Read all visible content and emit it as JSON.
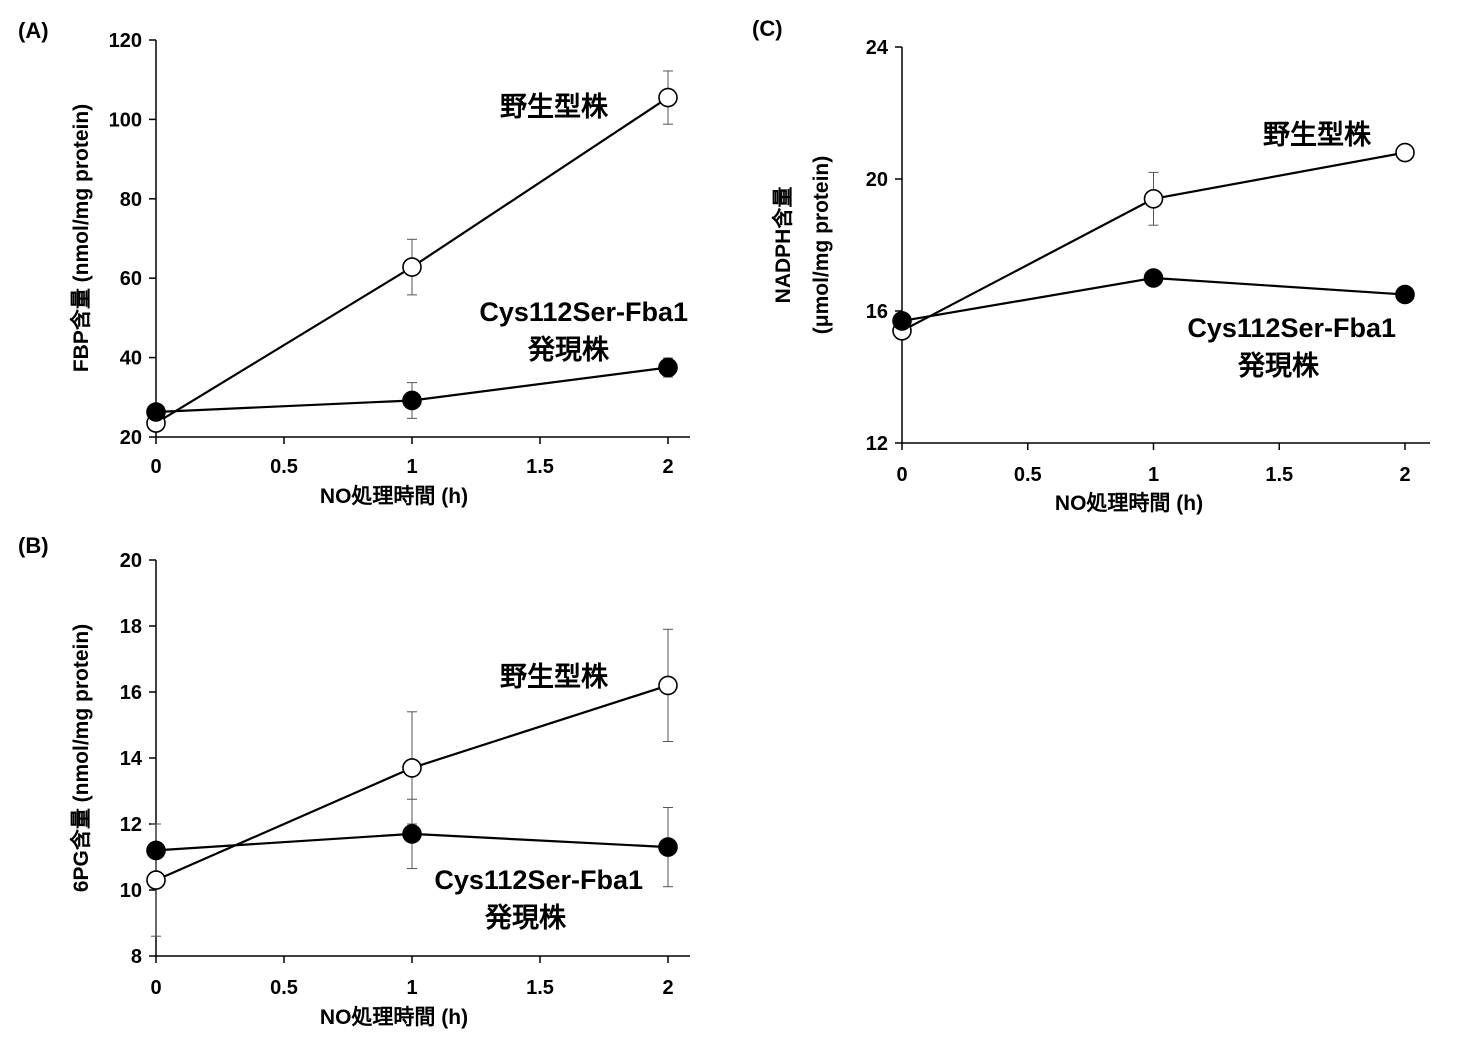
{
  "chart_data": [
    {
      "panel": "(A)",
      "type": "line",
      "title": "",
      "xlabel": "NO処理時間 (h)",
      "ylabel": "FBP含量 (nmol/mg protein)",
      "xlim": [
        0,
        2
      ],
      "ylim": [
        20,
        120
      ],
      "xticks": [
        0,
        0.5,
        1,
        1.5,
        2
      ],
      "xtick_labels": [
        "0",
        "0.5",
        "1",
        "1.5",
        "2"
      ],
      "yticks": [
        20,
        40,
        60,
        80,
        100,
        120
      ],
      "ytick_labels": [
        "20",
        "40",
        "60",
        "80",
        "100",
        "120"
      ],
      "grid": false,
      "legend": "none",
      "series": [
        {
          "name": "野生型株",
          "marker": "open-circle",
          "x": [
            0,
            1,
            2
          ],
          "y": [
            23.5,
            62.8,
            105.5
          ],
          "err": [
            0,
            7.0,
            6.7
          ]
        },
        {
          "name": "Cys112Ser-Fba1 発現株",
          "name_lines": [
            "Cys112Ser-Fba1",
            "発現株"
          ],
          "marker": "filled-circle",
          "x": [
            0,
            1,
            2
          ],
          "y": [
            26.3,
            29.2,
            37.5
          ],
          "err": [
            0,
            4.5,
            2.4
          ]
        }
      ]
    },
    {
      "panel": "(B)",
      "type": "line",
      "title": "",
      "xlabel": "NO処理時間 (h)",
      "ylabel": "6PG含量 (nmol/mg protein)",
      "xlim": [
        0,
        2
      ],
      "ylim": [
        8,
        20
      ],
      "xticks": [
        0,
        0.5,
        1,
        1.5,
        2
      ],
      "xtick_labels": [
        "0",
        "0.5",
        "1",
        "1.5",
        "2"
      ],
      "yticks": [
        8,
        10,
        12,
        14,
        16,
        18,
        20
      ],
      "ytick_labels": [
        "8",
        "10",
        "12",
        "14",
        "16",
        "18",
        "20"
      ],
      "grid": false,
      "legend": "none",
      "series": [
        {
          "name": "野生型株",
          "marker": "open-circle",
          "x": [
            0,
            1,
            2
          ],
          "y": [
            10.3,
            13.7,
            16.2
          ],
          "err": [
            1.7,
            1.7,
            1.7
          ]
        },
        {
          "name": "Cys112Ser-Fba1 発現株",
          "name_lines": [
            "Cys112Ser-Fba1",
            "発現株"
          ],
          "marker": "filled-circle",
          "x": [
            0,
            1,
            2
          ],
          "y": [
            11.2,
            11.7,
            11.3
          ],
          "err": [
            0,
            1.05,
            1.2
          ]
        }
      ]
    },
    {
      "panel": "(C)",
      "type": "line",
      "title": "",
      "xlabel": "NO処理時間 (h)",
      "ylabel": "NADPH含量",
      "ylabel2": "(μmol/mg protein)",
      "xlim": [
        0,
        2
      ],
      "ylim": [
        12,
        24
      ],
      "xticks": [
        0,
        0.5,
        1,
        1.5,
        2
      ],
      "xtick_labels": [
        "0",
        "0.5",
        "1",
        "1.5",
        "2"
      ],
      "yticks": [
        12,
        16,
        20,
        24
      ],
      "ytick_labels": [
        "12",
        "16",
        "20",
        "24"
      ],
      "grid": false,
      "legend": "none",
      "series": [
        {
          "name": "野生型株",
          "marker": "open-circle",
          "x": [
            0,
            1,
            2
          ],
          "y": [
            15.4,
            19.4,
            20.8
          ],
          "err": [
            0,
            0.8,
            0
          ]
        },
        {
          "name": "Cys112Ser-Fba1 発現株",
          "name_lines": [
            "Cys112Ser-Fba1",
            "発現株"
          ],
          "marker": "filled-circle",
          "x": [
            0,
            1,
            2
          ],
          "y": [
            15.7,
            17.0,
            16.5
          ],
          "err": [
            0,
            0,
            0
          ]
        }
      ]
    }
  ]
}
